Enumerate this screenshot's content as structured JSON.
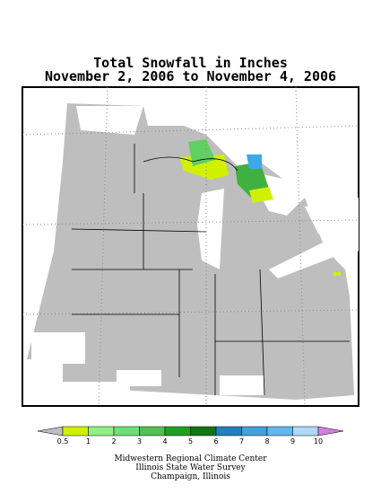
{
  "title": [
    "Total Snowfall in Inches",
    "November 2, 2006 to November 4, 2006"
  ],
  "legend": {
    "ticks": [
      0.5,
      1,
      2,
      3,
      4,
      5,
      6,
      7,
      8,
      9,
      10
    ],
    "under_color": "#bebebe",
    "over_color": "#d080e0",
    "colors": [
      "#d0f000",
      "#90f080",
      "#6ce070",
      "#50c050",
      "#20a020",
      "#107810",
      "#2080c0",
      "#40a0e0",
      "#60b8f0",
      "#b0d8f8"
    ]
  },
  "credits": [
    "Midwestern Regional Climate Center",
    "Illinois State Water Survey",
    "Champaign, Illinois"
  ]
}
